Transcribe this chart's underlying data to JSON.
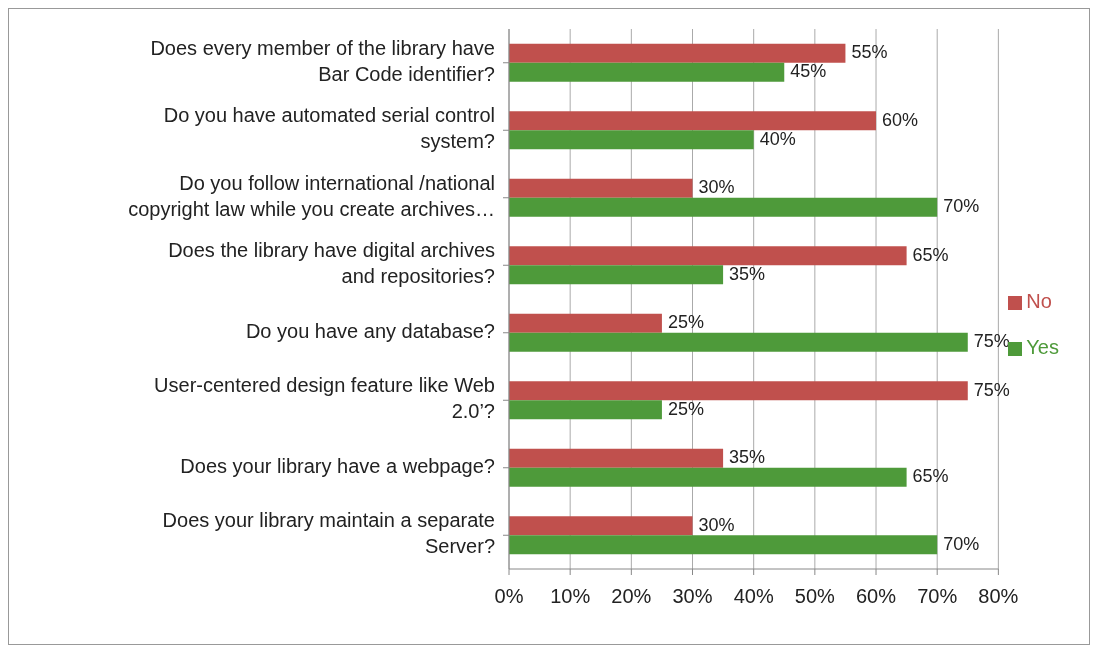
{
  "chart_data": {
    "type": "bar",
    "orientation": "horizontal",
    "categories": [
      "Does every member of the library have Bar Code identifier?",
      "Do you have automated serial control system?",
      "Do you follow international /national copyright law while you create archives…",
      "Does the library have digital archives and repositories?",
      "Do you have any database?",
      "User-centered design feature like Web 2.0’?",
      "Does your library have a webpage?",
      "Does your library maintain a separate Server?"
    ],
    "series": [
      {
        "name": "No",
        "color": "#c0504d",
        "values": [
          55,
          60,
          30,
          65,
          25,
          75,
          35,
          30
        ],
        "value_labels": [
          "55%",
          "60%",
          "30%",
          "65%",
          "25%",
          "75%",
          "35%",
          "30%"
        ]
      },
      {
        "name": "Yes",
        "color": "#4e9a3a",
        "values": [
          45,
          40,
          70,
          35,
          75,
          25,
          65,
          70
        ],
        "value_labels": [
          "45%",
          "40%",
          "70%",
          "35%",
          "75%",
          "25%",
          "65%",
          "70%"
        ]
      }
    ],
    "xlim": [
      0,
      80
    ],
    "xticks": [
      {
        "value": 0,
        "label": "0%"
      },
      {
        "value": 10,
        "label": "10%"
      },
      {
        "value": 20,
        "label": "20%"
      },
      {
        "value": 30,
        "label": "30%"
      },
      {
        "value": 40,
        "label": "40%"
      },
      {
        "value": 50,
        "label": "50%"
      },
      {
        "value": 60,
        "label": "60%"
      },
      {
        "value": 70,
        "label": "70%"
      },
      {
        "value": 80,
        "label": "80%"
      }
    ],
    "grid": "x",
    "legend": "right"
  }
}
